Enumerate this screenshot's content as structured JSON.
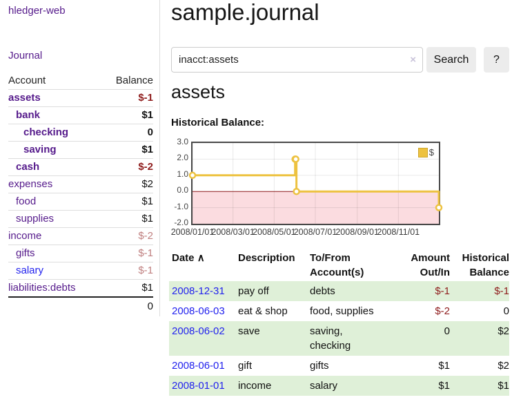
{
  "sidebar": {
    "app_title": "hledger-web",
    "journal_label": "Journal",
    "balances": {
      "account_header": "Account",
      "balance_header": "Balance",
      "rows": [
        {
          "name": "assets",
          "depth": 0,
          "bold": true,
          "balance": "$-1",
          "neg": "strong",
          "blue": false
        },
        {
          "name": "bank",
          "depth": 1,
          "bold": true,
          "balance": "$1",
          "neg": "none",
          "blue": false
        },
        {
          "name": "checking",
          "depth": 2,
          "bold": true,
          "balance": "0",
          "neg": "none",
          "blue": false
        },
        {
          "name": "saving",
          "depth": 2,
          "bold": true,
          "balance": "$1",
          "neg": "none",
          "blue": false
        },
        {
          "name": "cash",
          "depth": 1,
          "bold": true,
          "balance": "$-2",
          "neg": "strong",
          "blue": false
        },
        {
          "name": "expenses",
          "depth": 0,
          "bold": false,
          "balance": "$2",
          "neg": "none",
          "blue": false
        },
        {
          "name": "food",
          "depth": 1,
          "bold": false,
          "balance": "$1",
          "neg": "none",
          "blue": false
        },
        {
          "name": "supplies",
          "depth": 1,
          "bold": false,
          "balance": "$1",
          "neg": "none",
          "blue": false
        },
        {
          "name": "income",
          "depth": 0,
          "bold": false,
          "balance": "$-2",
          "neg": "soft",
          "blue": false
        },
        {
          "name": "gifts",
          "depth": 1,
          "bold": false,
          "balance": "$-1",
          "neg": "soft",
          "blue": false
        },
        {
          "name": "salary",
          "depth": 1,
          "bold": false,
          "balance": "$-1",
          "neg": "soft",
          "blue": true
        },
        {
          "name": "liabilities:debts",
          "depth": 0,
          "bold": false,
          "balance": "$1",
          "neg": "none",
          "blue": false
        }
      ],
      "total": "0"
    }
  },
  "main": {
    "title": "sample.journal",
    "search": {
      "value": "inacct:assets",
      "clear_icon": "×",
      "button_label": "Search",
      "help_label": "?"
    },
    "account_heading": "assets"
  },
  "chart_data": {
    "type": "line",
    "title": "Historical Balance:",
    "step": true,
    "x": [
      "2008-01-01",
      "2008-06-01",
      "2008-06-02",
      "2008-06-03",
      "2008-12-31"
    ],
    "series": [
      {
        "name": "$",
        "values": [
          1,
          2,
          2,
          0,
          -1
        ]
      }
    ],
    "xrange": [
      "2008-01-01",
      "2008-12-31"
    ],
    "ylim": [
      -2.0,
      3.0
    ],
    "yticks": [
      "3.0",
      "2.0",
      "1.0",
      "0.0",
      "-1.0",
      "-2.0"
    ],
    "xticks": [
      "2008/01/01",
      "2008/03/01",
      "2008/05/01",
      "2008/07/01",
      "2008/09/01",
      "2008/11/01"
    ],
    "legend": {
      "label": "$",
      "position": "top-right"
    },
    "grid": true,
    "xlabel": "",
    "ylabel": ""
  },
  "register": {
    "headers": {
      "date": "Date",
      "description": "Description",
      "accounts": "To/From Account(s)",
      "amount": "Amount Out/In",
      "balance": "Historical Balance"
    },
    "sort_icon": "∧",
    "rows": [
      {
        "date": "2008-12-31",
        "description": "pay off",
        "accounts": "debts",
        "amount": "$-1",
        "amount_neg": true,
        "balance": "$-1",
        "balance_neg": true
      },
      {
        "date": "2008-06-03",
        "description": "eat & shop",
        "accounts": "food, supplies",
        "amount": "$-2",
        "amount_neg": true,
        "balance": "0",
        "balance_neg": false
      },
      {
        "date": "2008-06-02",
        "description": "save",
        "accounts": "saving, checking",
        "amount": "0",
        "amount_neg": false,
        "balance": "$2",
        "balance_neg": false
      },
      {
        "date": "2008-06-01",
        "description": "gift",
        "accounts": "gifts",
        "amount": "$1",
        "amount_neg": false,
        "balance": "$2",
        "balance_neg": false
      },
      {
        "date": "2008-01-01",
        "description": "income",
        "accounts": "salary",
        "amount": "$1",
        "amount_neg": false,
        "balance": "$1",
        "balance_neg": false
      }
    ]
  },
  "colors": {
    "link_purple": "#551a8b",
    "link_blue": "#2222ee",
    "negative_strong": "#8f1d1d",
    "negative_soft": "#c08080",
    "text_black": "#111111",
    "row_green": "#dff0d8",
    "chart_line": "#edc240",
    "chart_negative_fill": "#fbdce0",
    "chart_zero_line": "#8b1a1a",
    "chart_border": "#4a4a4a"
  }
}
